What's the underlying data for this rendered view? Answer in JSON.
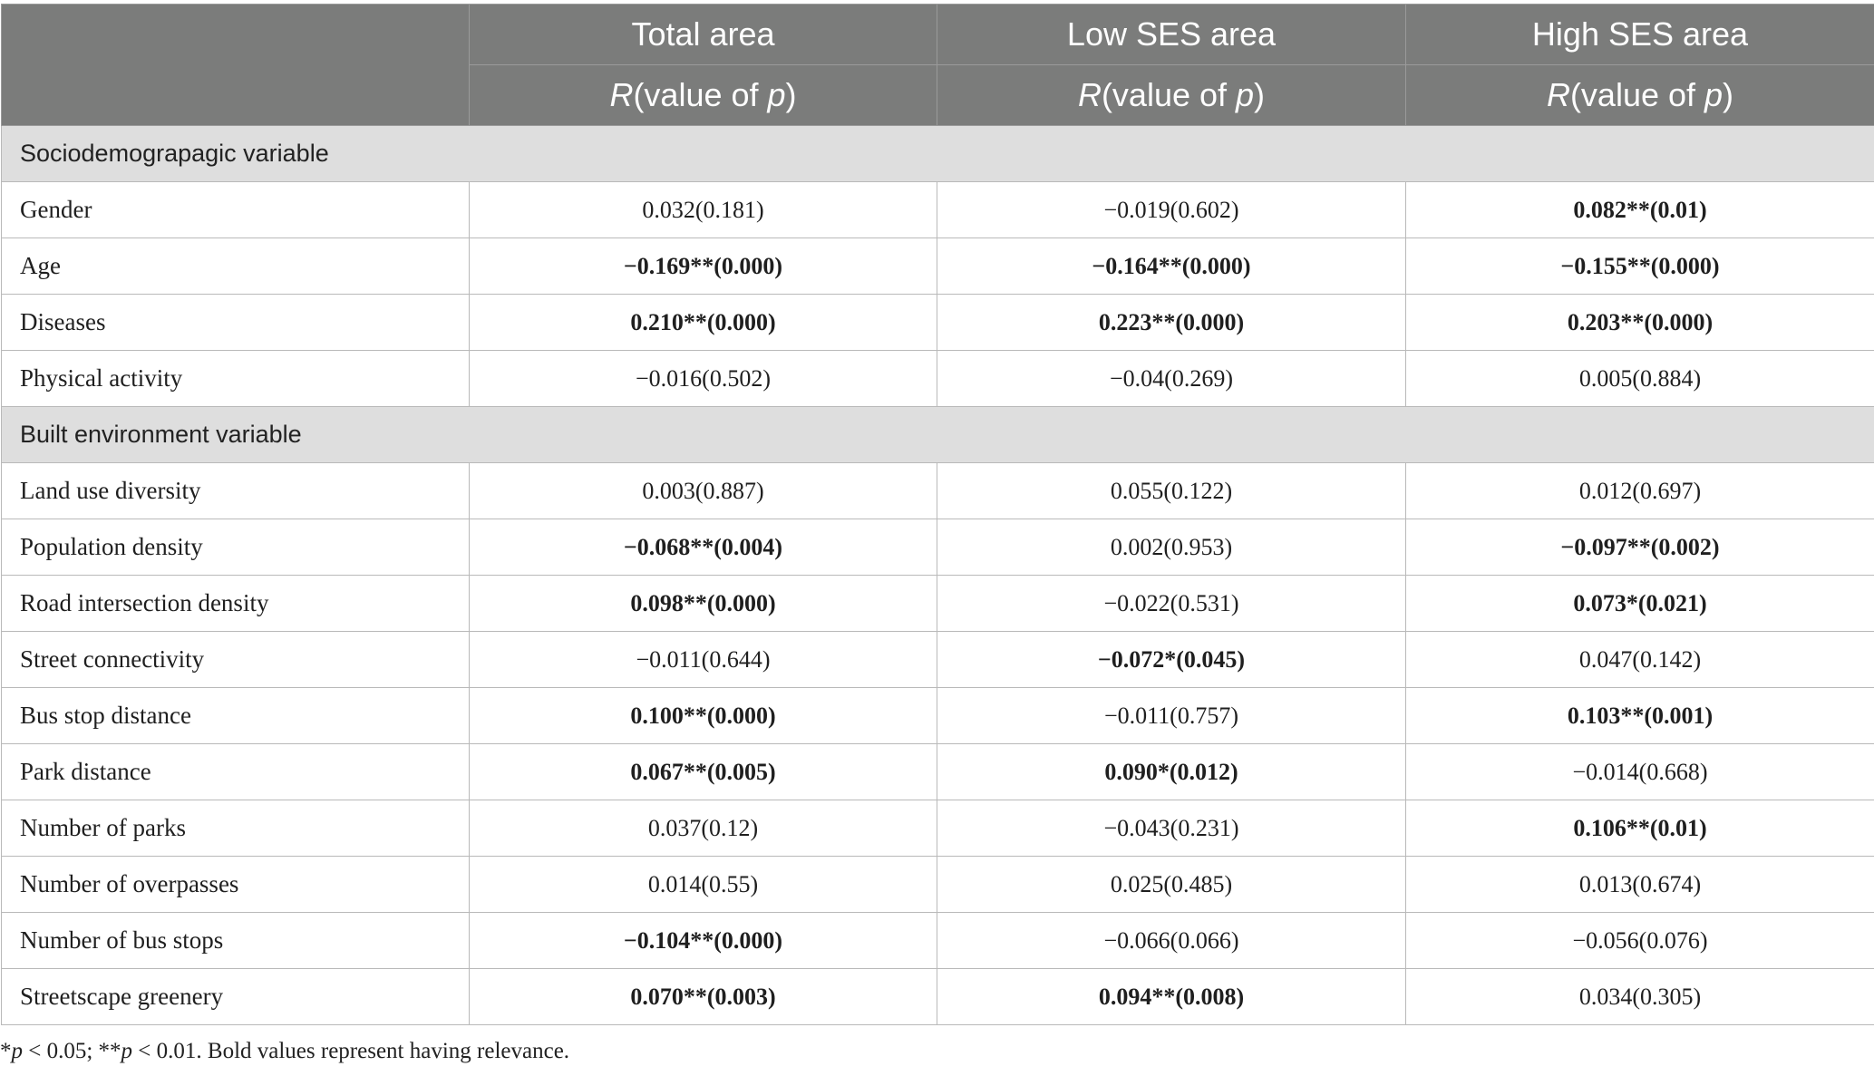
{
  "header": {
    "columns": [
      "Total area",
      "Low SES area",
      "High SES area"
    ],
    "sub_r": "R",
    "sub_mid": "(value of ",
    "sub_p": "p",
    "sub_end": ")"
  },
  "sections": [
    {
      "title": "Sociodemograpagic variable",
      "rows": [
        {
          "label": "Gender",
          "cells": [
            {
              "text": "0.032(0.181)",
              "bold": false
            },
            {
              "text": "−0.019(0.602)",
              "bold": false
            },
            {
              "text": "0.082**(0.01)",
              "bold": true
            }
          ]
        },
        {
          "label": "Age",
          "cells": [
            {
              "text": "−0.169**(0.000)",
              "bold": true
            },
            {
              "text": "−0.164**(0.000)",
              "bold": true
            },
            {
              "text": "−0.155**(0.000)",
              "bold": true
            }
          ]
        },
        {
          "label": "Diseases",
          "cells": [
            {
              "text": "0.210**(0.000)",
              "bold": true
            },
            {
              "text": "0.223**(0.000)",
              "bold": true
            },
            {
              "text": "0.203**(0.000)",
              "bold": true
            }
          ]
        },
        {
          "label": "Physical activity",
          "cells": [
            {
              "text": "−0.016(0.502)",
              "bold": false
            },
            {
              "text": "−0.04(0.269)",
              "bold": false
            },
            {
              "text": "0.005(0.884)",
              "bold": false
            }
          ]
        }
      ]
    },
    {
      "title": "Built environment variable",
      "rows": [
        {
          "label": "Land use diversity",
          "cells": [
            {
              "text": "0.003(0.887)",
              "bold": false
            },
            {
              "text": "0.055(0.122)",
              "bold": false
            },
            {
              "text": "0.012(0.697)",
              "bold": false
            }
          ]
        },
        {
          "label": "Population density",
          "cells": [
            {
              "text": "−0.068**(0.004)",
              "bold": true
            },
            {
              "text": "0.002(0.953)",
              "bold": false
            },
            {
              "text": "−0.097**(0.002)",
              "bold": true
            }
          ]
        },
        {
          "label": "Road intersection density",
          "cells": [
            {
              "text": "0.098**(0.000)",
              "bold": true
            },
            {
              "text": "−0.022(0.531)",
              "bold": false
            },
            {
              "text": "0.073*(0.021)",
              "bold": true
            }
          ]
        },
        {
          "label": "Street connectivity",
          "cells": [
            {
              "text": "−0.011(0.644)",
              "bold": false
            },
            {
              "text": "−0.072*(0.045)",
              "bold": true
            },
            {
              "text": "0.047(0.142)",
              "bold": false
            }
          ]
        },
        {
          "label": "Bus stop distance",
          "cells": [
            {
              "text": "0.100**(0.000)",
              "bold": true
            },
            {
              "text": "−0.011(0.757)",
              "bold": false
            },
            {
              "text": "0.103**(0.001)",
              "bold": true
            }
          ]
        },
        {
          "label": "Park distance",
          "cells": [
            {
              "text": "0.067**(0.005)",
              "bold": true
            },
            {
              "text": "0.090*(0.012)",
              "bold": true
            },
            {
              "text": "−0.014(0.668)",
              "bold": false
            }
          ]
        },
        {
          "label": "Number of parks",
          "cells": [
            {
              "text": "0.037(0.12)",
              "bold": false
            },
            {
              "text": "−0.043(0.231)",
              "bold": false
            },
            {
              "text": "0.106**(0.01)",
              "bold": true
            }
          ]
        },
        {
          "label": "Number of overpasses",
          "cells": [
            {
              "text": "0.014(0.55)",
              "bold": false
            },
            {
              "text": "0.025(0.485)",
              "bold": false
            },
            {
              "text": "0.013(0.674)",
              "bold": false
            }
          ]
        },
        {
          "label": "Number of bus stops",
          "cells": [
            {
              "text": "−0.104**(0.000)",
              "bold": true
            },
            {
              "text": "−0.066(0.066)",
              "bold": false
            },
            {
              "text": "−0.056(0.076)",
              "bold": false
            }
          ]
        },
        {
          "label": "Streetscape greenery",
          "cells": [
            {
              "text": "0.070**(0.003)",
              "bold": true
            },
            {
              "text": "0.094**(0.008)",
              "bold": true
            },
            {
              "text": "0.034(0.305)",
              "bold": false
            }
          ]
        }
      ]
    }
  ],
  "footnote": {
    "star": "*",
    "p1": "p",
    "t1": " < 0.05; **",
    "p2": "p",
    "t2": " < 0.01. Bold values represent having relevance."
  }
}
